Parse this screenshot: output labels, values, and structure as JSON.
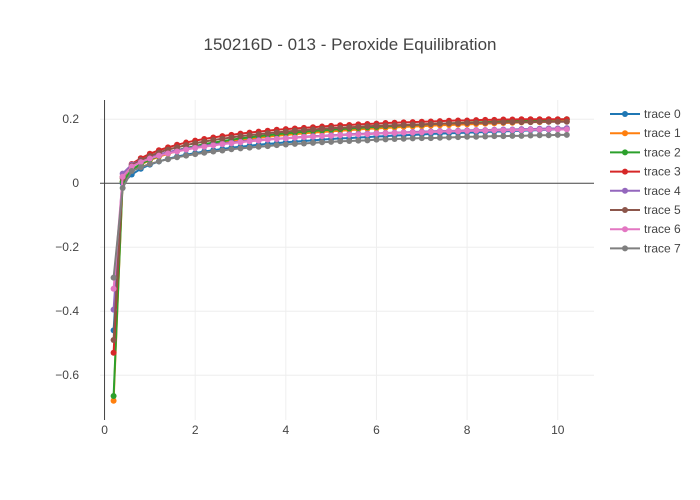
{
  "chart_data": {
    "type": "line",
    "title": "150216D - 013 - Peroxide Equilibration",
    "xlabel": "",
    "ylabel": "",
    "xlim": [
      -0.1,
      10.8
    ],
    "ylim": [
      -0.74,
      0.26
    ],
    "x_ticks": [
      0,
      2,
      4,
      6,
      8,
      10
    ],
    "x_tick_labels": [
      "0",
      "2",
      "4",
      "6",
      "8",
      "10"
    ],
    "y_ticks": [
      -0.6,
      -0.4,
      -0.2,
      0,
      0.2
    ],
    "y_tick_labels": [
      "−0.6",
      "−0.4",
      "−0.2",
      "0",
      "0.2"
    ],
    "grid": true,
    "legend_position": "right",
    "x": [
      0.2,
      0.4,
      0.6,
      0.8,
      1.0,
      1.2,
      1.4,
      1.6,
      1.8,
      2.0,
      2.2,
      2.4,
      2.6,
      2.8,
      3.0,
      3.2,
      3.4,
      3.6,
      3.8,
      4.0,
      4.2,
      4.4,
      4.6,
      4.8,
      5.0,
      5.2,
      5.4,
      5.6,
      5.8,
      6.0,
      6.2,
      6.4,
      6.6,
      6.8,
      7.0,
      7.2,
      7.4,
      7.6,
      7.8,
      8.0,
      8.2,
      8.4,
      8.6,
      8.8,
      9.0,
      9.2,
      9.4,
      9.6,
      9.8,
      10.0,
      10.2
    ],
    "series": [
      {
        "name": "trace 0",
        "color": "#1f77b4",
        "values": [
          -0.46,
          0.0,
          0.027,
          0.045,
          0.058,
          0.068,
          0.076,
          0.083,
          0.089,
          0.094,
          0.099,
          0.103,
          0.107,
          0.111,
          0.114,
          0.117,
          0.12,
          0.123,
          0.125,
          0.128,
          0.13,
          0.132,
          0.134,
          0.136,
          0.138,
          0.14,
          0.141,
          0.143,
          0.144,
          0.146,
          0.147,
          0.149,
          0.15,
          0.151,
          0.152,
          0.154,
          0.155,
          0.156,
          0.157,
          0.158,
          0.159,
          0.16,
          0.161,
          0.162,
          0.163,
          0.164,
          0.165,
          0.166,
          0.167,
          0.168,
          0.169
        ]
      },
      {
        "name": "trace 1",
        "color": "#ff7f0e",
        "values": [
          -0.68,
          0.005,
          0.04,
          0.058,
          0.072,
          0.083,
          0.092,
          0.1,
          0.107,
          0.113,
          0.118,
          0.123,
          0.127,
          0.131,
          0.135,
          0.139,
          0.142,
          0.145,
          0.148,
          0.151,
          0.153,
          0.156,
          0.158,
          0.16,
          0.162,
          0.164,
          0.166,
          0.168,
          0.17,
          0.171,
          0.173,
          0.174,
          0.176,
          0.177,
          0.178,
          0.18,
          0.181,
          0.182,
          0.183,
          0.184,
          0.185,
          0.186,
          0.187,
          0.188,
          0.189,
          0.19,
          0.191,
          0.191,
          0.192,
          0.193,
          0.194
        ]
      },
      {
        "name": "trace 2",
        "color": "#2ca02c",
        "values": [
          -0.665,
          0.005,
          0.042,
          0.06,
          0.074,
          0.085,
          0.095,
          0.103,
          0.11,
          0.116,
          0.122,
          0.127,
          0.131,
          0.136,
          0.14,
          0.143,
          0.147,
          0.15,
          0.153,
          0.156,
          0.158,
          0.161,
          0.163,
          0.165,
          0.167,
          0.169,
          0.171,
          0.173,
          0.175,
          0.176,
          0.178,
          0.179,
          0.181,
          0.182,
          0.183,
          0.185,
          0.186,
          0.187,
          0.188,
          0.189,
          0.19,
          0.191,
          0.192,
          0.193,
          0.194,
          0.195,
          0.196,
          0.197,
          0.198,
          0.199,
          0.2
        ]
      },
      {
        "name": "trace 3",
        "color": "#d62728",
        "values": [
          -0.53,
          0.02,
          0.06,
          0.078,
          0.092,
          0.103,
          0.112,
          0.12,
          0.127,
          0.133,
          0.138,
          0.143,
          0.147,
          0.151,
          0.155,
          0.158,
          0.161,
          0.164,
          0.167,
          0.169,
          0.171,
          0.173,
          0.175,
          0.177,
          0.179,
          0.181,
          0.182,
          0.184,
          0.185,
          0.186,
          0.188,
          0.189,
          0.19,
          0.191,
          0.192,
          0.193,
          0.194,
          0.195,
          0.196,
          0.196,
          0.197,
          0.198,
          0.198,
          0.199,
          0.199,
          0.2,
          0.2,
          0.2,
          0.2,
          0.2,
          0.2
        ]
      },
      {
        "name": "trace 4",
        "color": "#9467bd",
        "values": [
          -0.395,
          0.03,
          0.058,
          0.072,
          0.082,
          0.09,
          0.097,
          0.103,
          0.108,
          0.113,
          0.117,
          0.121,
          0.124,
          0.127,
          0.13,
          0.133,
          0.135,
          0.137,
          0.139,
          0.141,
          0.143,
          0.145,
          0.147,
          0.148,
          0.15,
          0.151,
          0.153,
          0.154,
          0.155,
          0.156,
          0.157,
          0.158,
          0.159,
          0.16,
          0.161,
          0.162,
          0.163,
          0.163,
          0.164,
          0.165,
          0.166,
          0.166,
          0.167,
          0.168,
          0.168,
          0.169,
          0.169,
          0.17,
          0.171,
          0.171,
          0.172
        ]
      },
      {
        "name": "trace 5",
        "color": "#8c564b",
        "values": [
          -0.49,
          0.015,
          0.055,
          0.072,
          0.085,
          0.096,
          0.105,
          0.112,
          0.119,
          0.125,
          0.13,
          0.135,
          0.139,
          0.143,
          0.147,
          0.15,
          0.153,
          0.156,
          0.159,
          0.161,
          0.164,
          0.166,
          0.168,
          0.17,
          0.172,
          0.173,
          0.175,
          0.176,
          0.178,
          0.179,
          0.18,
          0.181,
          0.182,
          0.183,
          0.184,
          0.185,
          0.186,
          0.187,
          0.187,
          0.188,
          0.189,
          0.189,
          0.19,
          0.19,
          0.191,
          0.191,
          0.191,
          0.192,
          0.192,
          0.192,
          0.192
        ]
      },
      {
        "name": "trace 6",
        "color": "#e377c2",
        "values": [
          -0.33,
          0.02,
          0.052,
          0.066,
          0.077,
          0.086,
          0.093,
          0.099,
          0.105,
          0.11,
          0.114,
          0.118,
          0.122,
          0.125,
          0.128,
          0.131,
          0.133,
          0.136,
          0.138,
          0.14,
          0.142,
          0.144,
          0.145,
          0.147,
          0.148,
          0.15,
          0.151,
          0.152,
          0.153,
          0.155,
          0.156,
          0.157,
          0.158,
          0.158,
          0.159,
          0.16,
          0.161,
          0.162,
          0.162,
          0.163,
          0.164,
          0.164,
          0.165,
          0.165,
          0.166,
          0.166,
          0.167,
          0.167,
          0.168,
          0.168,
          0.168
        ]
      },
      {
        "name": "trace 7",
        "color": "#7f7f7f",
        "values": [
          -0.295,
          -0.015,
          0.038,
          0.05,
          0.06,
          0.068,
          0.075,
          0.081,
          0.086,
          0.091,
          0.095,
          0.099,
          0.102,
          0.106,
          0.109,
          0.111,
          0.114,
          0.116,
          0.119,
          0.121,
          0.123,
          0.124,
          0.126,
          0.128,
          0.129,
          0.131,
          0.132,
          0.133,
          0.134,
          0.136,
          0.137,
          0.138,
          0.139,
          0.14,
          0.141,
          0.141,
          0.142,
          0.143,
          0.144,
          0.145,
          0.145,
          0.146,
          0.147,
          0.147,
          0.148,
          0.148,
          0.149,
          0.15,
          0.15,
          0.151,
          0.151
        ]
      }
    ]
  }
}
